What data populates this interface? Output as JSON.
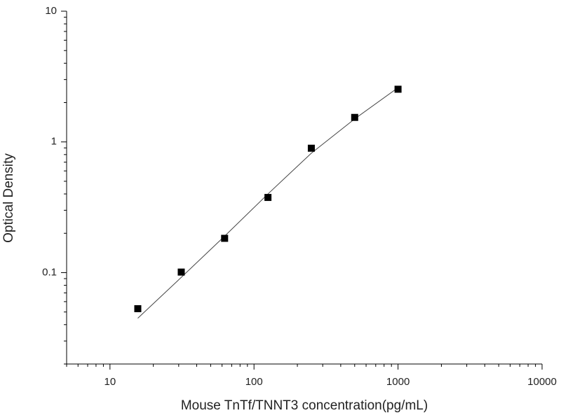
{
  "chart_data": {
    "type": "scatter",
    "x_label": "Mouse TnTf/TNNT3 concentration(pg/mL)",
    "y_label": "Optical Density",
    "x": [
      15.6,
      31.25,
      62.5,
      125,
      250,
      500,
      1000
    ],
    "values": [
      0.053,
      0.101,
      0.183,
      0.376,
      0.895,
      1.54,
      2.53
    ],
    "color": "#000000",
    "fit": {
      "x": [
        15.6,
        31.25,
        62.5,
        125,
        250,
        500,
        1000
      ],
      "values": [
        0.0448,
        0.092,
        0.19,
        0.4,
        0.82,
        1.5,
        2.6
      ],
      "color": "#444444"
    },
    "xlog": true,
    "ylog": true,
    "xlim": [
      5,
      10000
    ],
    "ylim": [
      0.02,
      10
    ],
    "xticks": [
      10,
      100,
      1000,
      10000
    ],
    "yticks": [
      0.1,
      1,
      10
    ],
    "xminorticks": [
      5,
      6,
      7,
      8,
      9,
      20,
      30,
      40,
      50,
      60,
      70,
      80,
      90,
      200,
      300,
      400,
      500,
      600,
      700,
      800,
      900,
      2000,
      3000,
      4000,
      5000,
      6000,
      7000,
      8000,
      9000
    ],
    "yminorticks": [
      0.02,
      0.03,
      0.04,
      0.05,
      0.06,
      0.07,
      0.08,
      0.09,
      0.2,
      0.3,
      0.4,
      0.5,
      0.6,
      0.7,
      0.8,
      0.9,
      2,
      3,
      4,
      5,
      6,
      7,
      8,
      9
    ]
  }
}
